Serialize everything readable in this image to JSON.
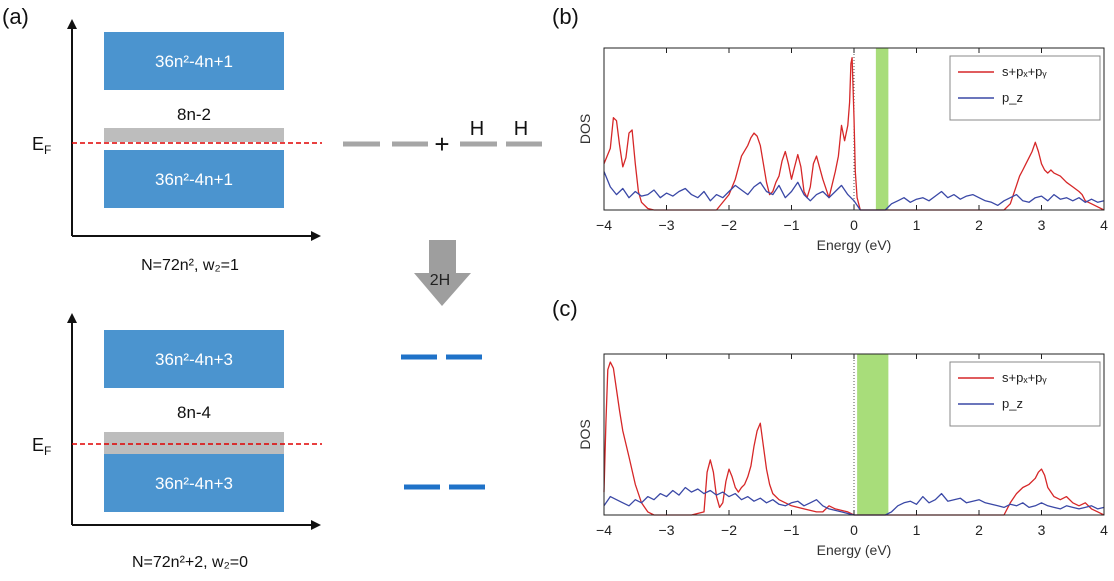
{
  "panels": {
    "a": "(a)",
    "b": "(b)",
    "c": "(c)"
  },
  "diagram": {
    "top": {
      "upper_band": "36n²-4n+1",
      "gap_states": "8n-2",
      "lower_band": "36n²-4n+1",
      "fermi": "E_F",
      "caption": "N=72n², w₂=1"
    },
    "bottom": {
      "upper_band": "36n²-4n+3",
      "gap_states": "8n-4",
      "lower_band": "36n²-4n+3",
      "fermi": "E_F",
      "caption": "N=72n²+2, w₂=0"
    },
    "hydrogen_label_1": "H",
    "hydrogen_label_2": "H",
    "plus": "+",
    "arrow_label": "2H",
    "colors": {
      "band": "#4b94cf",
      "gap": "#bdbdbd",
      "fermi": "#e00000",
      "gray_level": "#a6a6a6",
      "blue_level": "#1f72c8"
    }
  },
  "chart_data": [
    {
      "type": "line",
      "panel": "b",
      "xlabel": "Energy (eV)",
      "ylabel": "DOS",
      "xlim": [
        -4,
        4
      ],
      "xticks": [
        -4,
        -3,
        -2,
        -1,
        0,
        1,
        2,
        3,
        4
      ],
      "xtick_labels": [
        "−4",
        "−3",
        "−2",
        "−1",
        "0",
        "1",
        "2",
        "3",
        "4"
      ],
      "ylim": [
        0,
        1.0
      ],
      "gap_band": [
        0.35,
        0.55
      ],
      "fermi_marker_x": 0,
      "legend_position": "top-right",
      "series": [
        {
          "name": "s+pₓ+pᵧ",
          "color": "#d62728",
          "x": [
            -4.0,
            -3.9,
            -3.85,
            -3.8,
            -3.75,
            -3.7,
            -3.65,
            -3.6,
            -3.55,
            -3.5,
            -3.45,
            -3.4,
            -3.3,
            -3.2,
            -3.0,
            -2.6,
            -2.2,
            -2.0,
            -1.9,
            -1.8,
            -1.7,
            -1.65,
            -1.6,
            -1.55,
            -1.5,
            -1.45,
            -1.4,
            -1.35,
            -1.3,
            -1.25,
            -1.2,
            -1.15,
            -1.1,
            -1.05,
            -1.0,
            -0.95,
            -0.9,
            -0.85,
            -0.8,
            -0.75,
            -0.7,
            -0.65,
            -0.6,
            -0.5,
            -0.4,
            -0.3,
            -0.25,
            -0.2,
            -0.15,
            -0.1,
            -0.07,
            -0.05,
            -0.03,
            0.0,
            0.02,
            0.05,
            0.1,
            1.5,
            2.0,
            2.4,
            2.5,
            2.55,
            2.6,
            2.65,
            2.7,
            2.75,
            2.8,
            2.85,
            2.9,
            2.95,
            3.0,
            3.05,
            3.1,
            3.15,
            3.2,
            3.3,
            3.4,
            3.5,
            3.6,
            3.65,
            3.7,
            3.8,
            3.9,
            4.0
          ],
          "y": [
            0.3,
            0.4,
            0.6,
            0.58,
            0.42,
            0.28,
            0.34,
            0.5,
            0.52,
            0.3,
            0.12,
            0.05,
            0.01,
            0.0,
            0.0,
            0.0,
            0.0,
            0.1,
            0.2,
            0.35,
            0.42,
            0.47,
            0.5,
            0.48,
            0.42,
            0.3,
            0.18,
            0.1,
            0.12,
            0.18,
            0.22,
            0.32,
            0.38,
            0.3,
            0.2,
            0.28,
            0.36,
            0.28,
            0.12,
            0.08,
            0.15,
            0.3,
            0.35,
            0.2,
            0.08,
            0.25,
            0.35,
            0.55,
            0.45,
            0.55,
            0.7,
            0.95,
            0.99,
            0.6,
            0.25,
            0.08,
            0.0,
            0.0,
            0.0,
            0.0,
            0.04,
            0.1,
            0.16,
            0.22,
            0.26,
            0.3,
            0.34,
            0.38,
            0.44,
            0.38,
            0.3,
            0.26,
            0.24,
            0.26,
            0.24,
            0.22,
            0.18,
            0.15,
            0.12,
            0.1,
            0.06,
            0.04,
            0.02,
            0.0
          ]
        },
        {
          "name": "p_z",
          "color": "#3a48a6",
          "x": [
            -4.0,
            -3.9,
            -3.8,
            -3.7,
            -3.6,
            -3.5,
            -3.4,
            -3.3,
            -3.2,
            -3.1,
            -3.0,
            -2.9,
            -2.8,
            -2.7,
            -2.6,
            -2.5,
            -2.4,
            -2.3,
            -2.2,
            -2.1,
            -2.0,
            -1.9,
            -1.8,
            -1.7,
            -1.6,
            -1.5,
            -1.4,
            -1.3,
            -1.2,
            -1.1,
            -1.0,
            -0.9,
            -0.8,
            -0.7,
            -0.6,
            -0.5,
            -0.4,
            -0.3,
            -0.2,
            -0.1,
            0.0,
            0.1,
            0.2,
            0.3,
            0.4,
            0.5,
            0.6,
            0.7,
            0.8,
            0.9,
            1.0,
            1.1,
            1.2,
            1.3,
            1.4,
            1.5,
            1.6,
            1.7,
            1.8,
            1.9,
            2.0,
            2.1,
            2.2,
            2.3,
            2.4,
            2.5,
            2.6,
            2.7,
            2.8,
            2.9,
            3.0,
            3.1,
            3.2,
            3.3,
            3.4,
            3.5,
            3.6,
            3.7,
            3.8,
            3.9,
            4.0
          ],
          "y": [
            0.25,
            0.15,
            0.1,
            0.14,
            0.08,
            0.12,
            0.09,
            0.1,
            0.13,
            0.08,
            0.11,
            0.09,
            0.12,
            0.14,
            0.1,
            0.08,
            0.12,
            0.06,
            0.1,
            0.08,
            0.12,
            0.16,
            0.13,
            0.1,
            0.15,
            0.18,
            0.12,
            0.1,
            0.16,
            0.08,
            0.12,
            0.18,
            0.1,
            0.06,
            0.1,
            0.12,
            0.08,
            0.12,
            0.16,
            0.1,
            0.06,
            0.0,
            0.0,
            0.0,
            0.0,
            0.0,
            0.04,
            0.06,
            0.08,
            0.05,
            0.07,
            0.08,
            0.06,
            0.09,
            0.12,
            0.08,
            0.1,
            0.07,
            0.09,
            0.1,
            0.08,
            0.06,
            0.05,
            0.03,
            0.06,
            0.08,
            0.1,
            0.06,
            0.05,
            0.08,
            0.09,
            0.06,
            0.1,
            0.07,
            0.08,
            0.06,
            0.08,
            0.05,
            0.07,
            0.05,
            0.06
          ]
        }
      ]
    },
    {
      "type": "line",
      "panel": "c",
      "xlabel": "Energy (eV)",
      "ylabel": "DOS",
      "xlim": [
        -4,
        4
      ],
      "xticks": [
        -4,
        -3,
        -2,
        -1,
        0,
        1,
        2,
        3,
        4
      ],
      "xtick_labels": [
        "−4",
        "−3",
        "−2",
        "−1",
        "0",
        "1",
        "2",
        "3",
        "4"
      ],
      "ylim": [
        0,
        1.0
      ],
      "gap_band": [
        0.05,
        0.55
      ],
      "fermi_marker_x": 0,
      "legend_position": "top-right",
      "series": [
        {
          "name": "s+pₓ+pᵧ",
          "color": "#d62728",
          "x": [
            -4.0,
            -3.97,
            -3.94,
            -3.9,
            -3.85,
            -3.8,
            -3.75,
            -3.7,
            -3.6,
            -3.5,
            -3.4,
            -3.3,
            -3.2,
            -3.0,
            -2.8,
            -2.6,
            -2.4,
            -2.35,
            -2.3,
            -2.25,
            -2.2,
            -2.15,
            -2.1,
            -2.05,
            -2.0,
            -1.95,
            -1.9,
            -1.85,
            -1.8,
            -1.75,
            -1.7,
            -1.65,
            -1.6,
            -1.55,
            -1.5,
            -1.45,
            -1.4,
            -1.35,
            -1.3,
            -1.2,
            -1.1,
            -1.0,
            -0.8,
            -0.6,
            -0.5,
            -0.4,
            -0.3,
            -0.2,
            -0.1,
            0.0,
            0.05,
            0.1,
            2.4,
            2.5,
            2.6,
            2.7,
            2.8,
            2.9,
            2.95,
            3.0,
            3.05,
            3.1,
            3.2,
            3.3,
            3.4,
            3.5,
            3.6,
            3.7,
            3.8,
            3.9,
            4.0
          ],
          "y": [
            0.15,
            0.6,
            0.95,
            1.0,
            0.96,
            0.82,
            0.68,
            0.55,
            0.38,
            0.2,
            0.08,
            0.02,
            0.0,
            0.0,
            0.0,
            0.0,
            0.02,
            0.28,
            0.36,
            0.28,
            0.12,
            0.05,
            0.08,
            0.22,
            0.3,
            0.25,
            0.18,
            0.15,
            0.18,
            0.2,
            0.25,
            0.32,
            0.45,
            0.55,
            0.6,
            0.45,
            0.3,
            0.2,
            0.14,
            0.1,
            0.08,
            0.06,
            0.04,
            0.02,
            0.02,
            0.06,
            0.04,
            0.03,
            0.02,
            0.0,
            0.0,
            0.0,
            0.0,
            0.08,
            0.14,
            0.18,
            0.2,
            0.24,
            0.28,
            0.3,
            0.26,
            0.18,
            0.12,
            0.1,
            0.12,
            0.08,
            0.06,
            0.08,
            0.04,
            0.02,
            0.0
          ]
        },
        {
          "name": "p_z",
          "color": "#3a48a6",
          "x": [
            -4.0,
            -3.9,
            -3.8,
            -3.7,
            -3.6,
            -3.5,
            -3.4,
            -3.3,
            -3.2,
            -3.1,
            -3.0,
            -2.9,
            -2.8,
            -2.7,
            -2.6,
            -2.5,
            -2.4,
            -2.3,
            -2.2,
            -2.1,
            -2.0,
            -1.9,
            -1.8,
            -1.7,
            -1.6,
            -1.5,
            -1.4,
            -1.3,
            -1.2,
            -1.1,
            -1.0,
            -0.9,
            -0.8,
            -0.7,
            -0.6,
            -0.5,
            -0.4,
            -0.3,
            -0.2,
            -0.1,
            0.0,
            0.1,
            0.2,
            0.3,
            0.4,
            0.5,
            0.6,
            0.7,
            0.8,
            0.9,
            1.0,
            1.1,
            1.2,
            1.3,
            1.4,
            1.5,
            1.6,
            1.7,
            1.8,
            1.9,
            2.0,
            2.1,
            2.2,
            2.3,
            2.4,
            2.5,
            2.6,
            2.7,
            2.8,
            2.9,
            3.0,
            3.1,
            3.2,
            3.3,
            3.4,
            3.5,
            3.6,
            3.7,
            3.8,
            3.9,
            4.0
          ],
          "y": [
            0.06,
            0.12,
            0.1,
            0.08,
            0.06,
            0.1,
            0.08,
            0.12,
            0.1,
            0.14,
            0.12,
            0.16,
            0.13,
            0.18,
            0.15,
            0.17,
            0.14,
            0.16,
            0.13,
            0.15,
            0.12,
            0.14,
            0.1,
            0.12,
            0.09,
            0.11,
            0.08,
            0.1,
            0.07,
            0.06,
            0.08,
            0.09,
            0.06,
            0.08,
            0.1,
            0.06,
            0.04,
            0.03,
            0.02,
            0.01,
            0.0,
            0.0,
            0.0,
            0.0,
            0.0,
            0.0,
            0.02,
            0.06,
            0.08,
            0.09,
            0.07,
            0.12,
            0.08,
            0.1,
            0.14,
            0.09,
            0.1,
            0.11,
            0.08,
            0.09,
            0.1,
            0.08,
            0.07,
            0.06,
            0.05,
            0.07,
            0.06,
            0.08,
            0.05,
            0.06,
            0.08,
            0.06,
            0.05,
            0.04,
            0.06,
            0.05,
            0.04,
            0.05,
            0.06,
            0.04,
            0.05
          ]
        }
      ]
    }
  ]
}
